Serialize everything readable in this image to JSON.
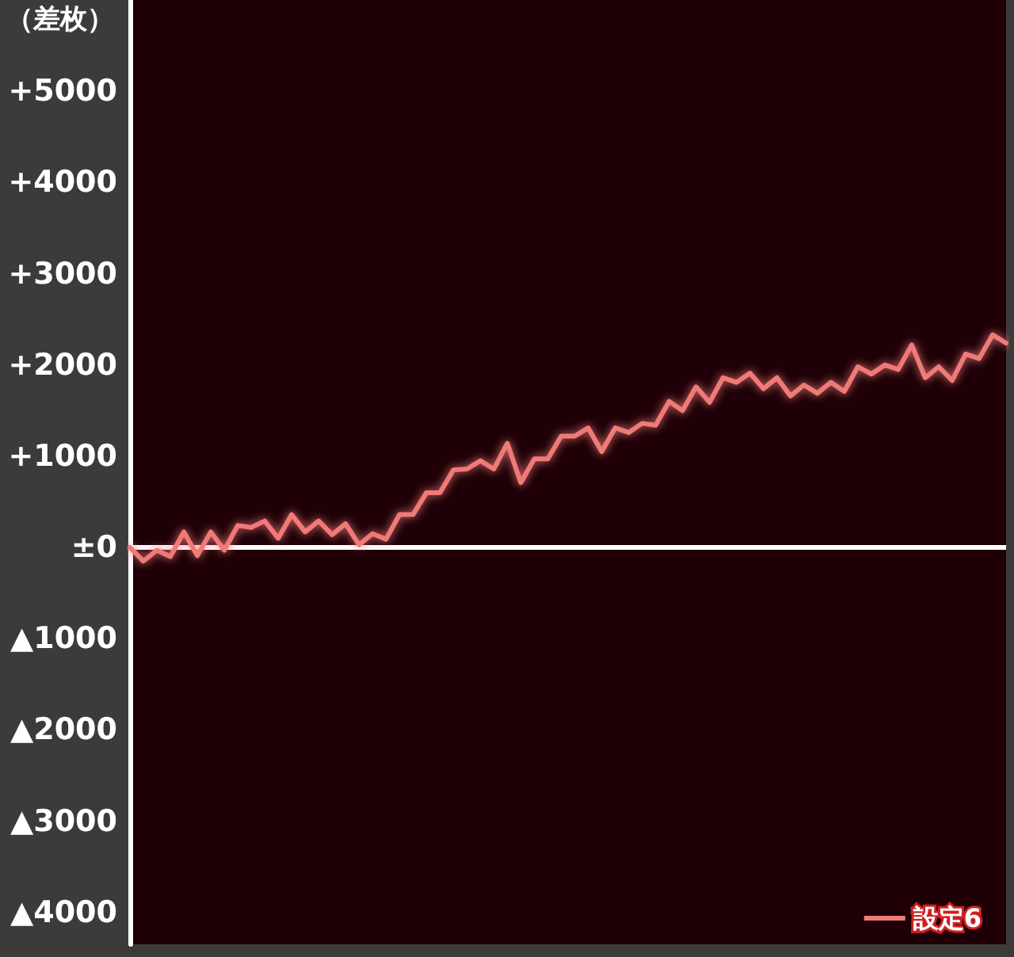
{
  "chart_data": {
    "type": "line",
    "ylabel": "（差枚）",
    "categories": [
      null,
      null,
      null,
      null,
      null,
      null,
      null,
      null,
      null,
      null,
      null,
      null,
      null,
      null,
      null,
      null,
      null,
      null,
      null,
      null,
      null,
      null,
      null,
      null,
      null,
      null,
      null,
      null,
      null,
      null,
      null,
      null,
      null,
      null,
      null,
      null,
      null,
      null,
      null,
      null,
      null,
      null,
      null,
      null,
      null,
      null,
      null,
      null,
      null,
      null,
      null,
      null,
      null,
      null,
      null,
      null,
      null,
      null,
      null,
      null,
      null,
      null,
      null,
      null,
      null,
      null
    ],
    "series": [
      {
        "name": "設定6",
        "color": "#f07a78",
        "values": [
          0,
          -150,
          -30,
          -100,
          170,
          -90,
          170,
          -30,
          240,
          220,
          290,
          100,
          360,
          170,
          290,
          140,
          260,
          30,
          150,
          90,
          360,
          360,
          600,
          600,
          850,
          860,
          950,
          860,
          1140,
          710,
          970,
          970,
          1220,
          1220,
          1310,
          1050,
          1310,
          1260,
          1360,
          1340,
          1600,
          1500,
          1760,
          1590,
          1860,
          1810,
          1910,
          1740,
          1860,
          1660,
          1780,
          1690,
          1810,
          1710,
          1980,
          1900,
          2000,
          1950,
          2220,
          1860,
          1980,
          1830,
          2120,
          2070,
          2330,
          2240
        ]
      }
    ],
    "ylim": [
      -4350,
      6000
    ],
    "yticks": [
      {
        "value": 5000,
        "label": "+5000"
      },
      {
        "value": 4000,
        "label": "+4000"
      },
      {
        "value": 3000,
        "label": "+3000"
      },
      {
        "value": 2000,
        "label": "+2000"
      },
      {
        "value": 1000,
        "label": "+1000"
      },
      {
        "value": 0,
        "label": "±0"
      },
      {
        "value": -1000,
        "label": "▲1000"
      },
      {
        "value": -2000,
        "label": "▲2000"
      },
      {
        "value": -3000,
        "label": "▲3000"
      },
      {
        "value": -4000,
        "label": "▲4000"
      }
    ],
    "ref_lines": [
      {
        "axis": "y",
        "value": 0,
        "color": "#ffffff"
      }
    ],
    "grid": false,
    "legend": "bottom right",
    "marker": "none",
    "line_style": "solid"
  }
}
